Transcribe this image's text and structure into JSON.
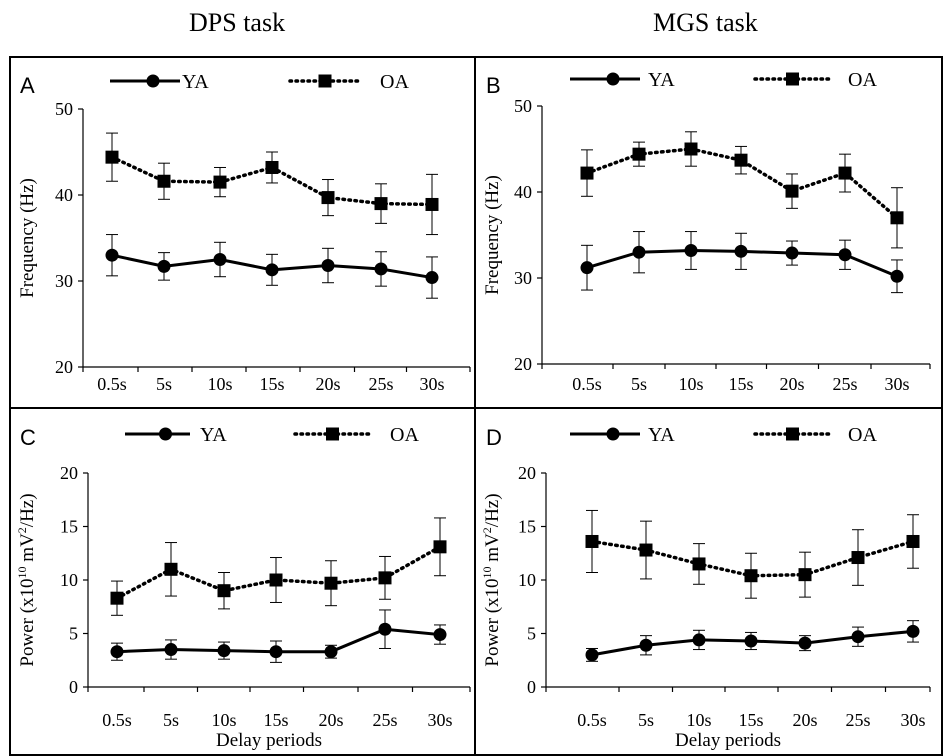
{
  "column_titles": [
    "DPS task",
    "MGS task"
  ],
  "legend_labels": [
    "YA",
    "OA"
  ],
  "chart_data": [
    {
      "panel": "A",
      "type": "line",
      "categories": [
        "0.5s",
        "5s",
        "10s",
        "15s",
        "20s",
        "25s",
        "30s"
      ],
      "ylabel": "Frequency (Hz)",
      "xlabel": "",
      "ylim": [
        20,
        50
      ],
      "yticks": [
        20,
        30,
        40,
        50
      ],
      "series": [
        {
          "name": "YA",
          "style": "solid",
          "marker": "circle",
          "values": [
            33.0,
            31.7,
            32.5,
            31.3,
            31.8,
            31.4,
            30.4
          ],
          "err": [
            2.4,
            1.6,
            2.0,
            1.8,
            2.0,
            2.0,
            2.4
          ]
        },
        {
          "name": "OA",
          "style": "dotted",
          "marker": "square",
          "values": [
            44.4,
            41.6,
            41.5,
            43.2,
            39.7,
            39.0,
            38.9
          ],
          "err": [
            2.8,
            2.1,
            1.7,
            1.8,
            2.1,
            2.3,
            3.5
          ]
        }
      ]
    },
    {
      "panel": "B",
      "type": "line",
      "categories": [
        "0.5s",
        "5s",
        "10s",
        "15s",
        "20s",
        "25s",
        "30s"
      ],
      "ylabel": "Frequency (Hz)",
      "xlabel": "",
      "ylim": [
        20,
        50
      ],
      "yticks": [
        20,
        30,
        40,
        50
      ],
      "series": [
        {
          "name": "YA",
          "style": "solid",
          "marker": "circle",
          "values": [
            31.2,
            33.0,
            33.2,
            33.1,
            32.9,
            32.7,
            30.2
          ],
          "err": [
            2.6,
            2.4,
            2.2,
            2.1,
            1.4,
            1.7,
            1.9
          ]
        },
        {
          "name": "OA",
          "style": "dotted",
          "marker": "square",
          "values": [
            42.2,
            44.4,
            45.0,
            43.7,
            40.1,
            42.2,
            37.0
          ],
          "err": [
            2.7,
            1.4,
            2.0,
            1.6,
            2.0,
            2.2,
            3.5
          ]
        }
      ]
    },
    {
      "panel": "C",
      "type": "line",
      "categories": [
        "0.5s",
        "5s",
        "10s",
        "15s",
        "20s",
        "25s",
        "30s"
      ],
      "ylabel": "Power (x10^10 mV^2/Hz)",
      "xlabel": "Delay periods",
      "ylim": [
        0,
        20
      ],
      "yticks": [
        0,
        5,
        10,
        15,
        20
      ],
      "series": [
        {
          "name": "YA",
          "style": "solid",
          "marker": "circle",
          "values": [
            3.3,
            3.5,
            3.4,
            3.3,
            3.3,
            5.4,
            4.9
          ],
          "err": [
            0.8,
            0.9,
            0.8,
            1.0,
            0.6,
            1.8,
            0.9
          ]
        },
        {
          "name": "OA",
          "style": "dotted",
          "marker": "square",
          "values": [
            8.3,
            11.0,
            9.0,
            10.0,
            9.7,
            10.2,
            13.1
          ],
          "err": [
            1.6,
            2.5,
            1.7,
            2.1,
            2.1,
            2.0,
            2.7
          ]
        }
      ]
    },
    {
      "panel": "D",
      "type": "line",
      "categories": [
        "0.5s",
        "5s",
        "10s",
        "15s",
        "20s",
        "25s",
        "30s"
      ],
      "ylabel": "Power (x10^10 mV^2/Hz)",
      "xlabel": "Delay periods",
      "ylim": [
        0,
        20
      ],
      "yticks": [
        0,
        5,
        10,
        15,
        20
      ],
      "series": [
        {
          "name": "YA",
          "style": "solid",
          "marker": "circle",
          "values": [
            3.0,
            3.9,
            4.4,
            4.3,
            4.1,
            4.7,
            5.2
          ],
          "err": [
            0.6,
            0.9,
            0.9,
            0.8,
            0.7,
            0.9,
            1.0
          ]
        },
        {
          "name": "OA",
          "style": "dotted",
          "marker": "square",
          "values": [
            13.6,
            12.8,
            11.5,
            10.4,
            10.5,
            12.1,
            13.6
          ],
          "err": [
            2.9,
            2.7,
            1.9,
            2.1,
            2.1,
            2.6,
            2.5
          ]
        }
      ]
    }
  ]
}
